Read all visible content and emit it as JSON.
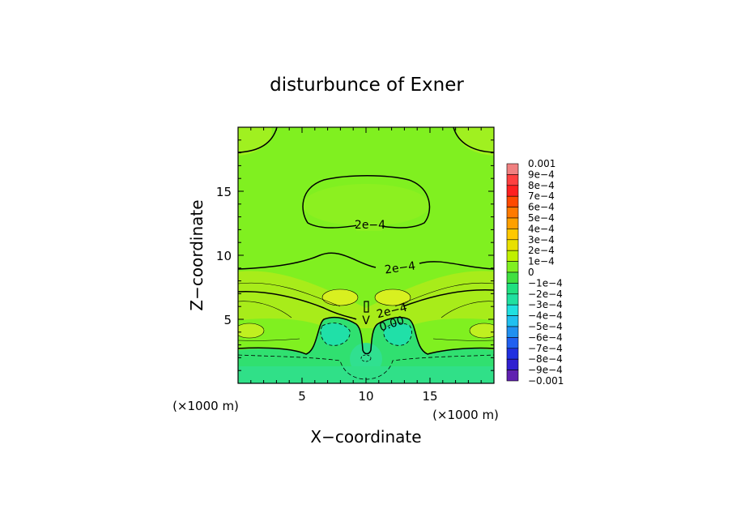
{
  "chart_data": {
    "type": "heatmap",
    "title": "disturbunce of Exner",
    "xlabel": "X−coordinate",
    "ylabel": "Z−coordinate",
    "x_unit": "(×1000 m)",
    "y_unit": "(×1000 m)",
    "xlim": [
      0,
      20
    ],
    "ylim": [
      0,
      20
    ],
    "x_ticks": [
      5,
      10,
      15
    ],
    "y_ticks": [
      5,
      10,
      15
    ],
    "colorbar": {
      "min": -0.001,
      "max": 0.001,
      "labels": [
        "0.001",
        "9e−4",
        "8e−4",
        "7e−4",
        "6e−4",
        "5e−4",
        "4e−4",
        "3e−4",
        "2e−4",
        "1e−4",
        "0",
        "−1e−4",
        "−2e−4",
        "−3e−4",
        "−4e−4",
        "−5e−4",
        "−6e−4",
        "−7e−4",
        "−8e−4",
        "−9e−4",
        "−0.001"
      ],
      "colors": [
        "#f08080",
        "#ff4040",
        "#ff2020",
        "#ff4a00",
        "#ff7a00",
        "#ffa000",
        "#ffc800",
        "#e8e000",
        "#c0f000",
        "#80f020",
        "#40e040",
        "#20e080",
        "#20e0a0",
        "#20e0e0",
        "#20c0f0",
        "#2090f0",
        "#2060f0",
        "#2030e0",
        "#3020d0",
        "#6020b0"
      ]
    },
    "contour_labels": [
      "2e−4",
      "2e−4",
      "2e−4",
      "0.00"
    ]
  }
}
